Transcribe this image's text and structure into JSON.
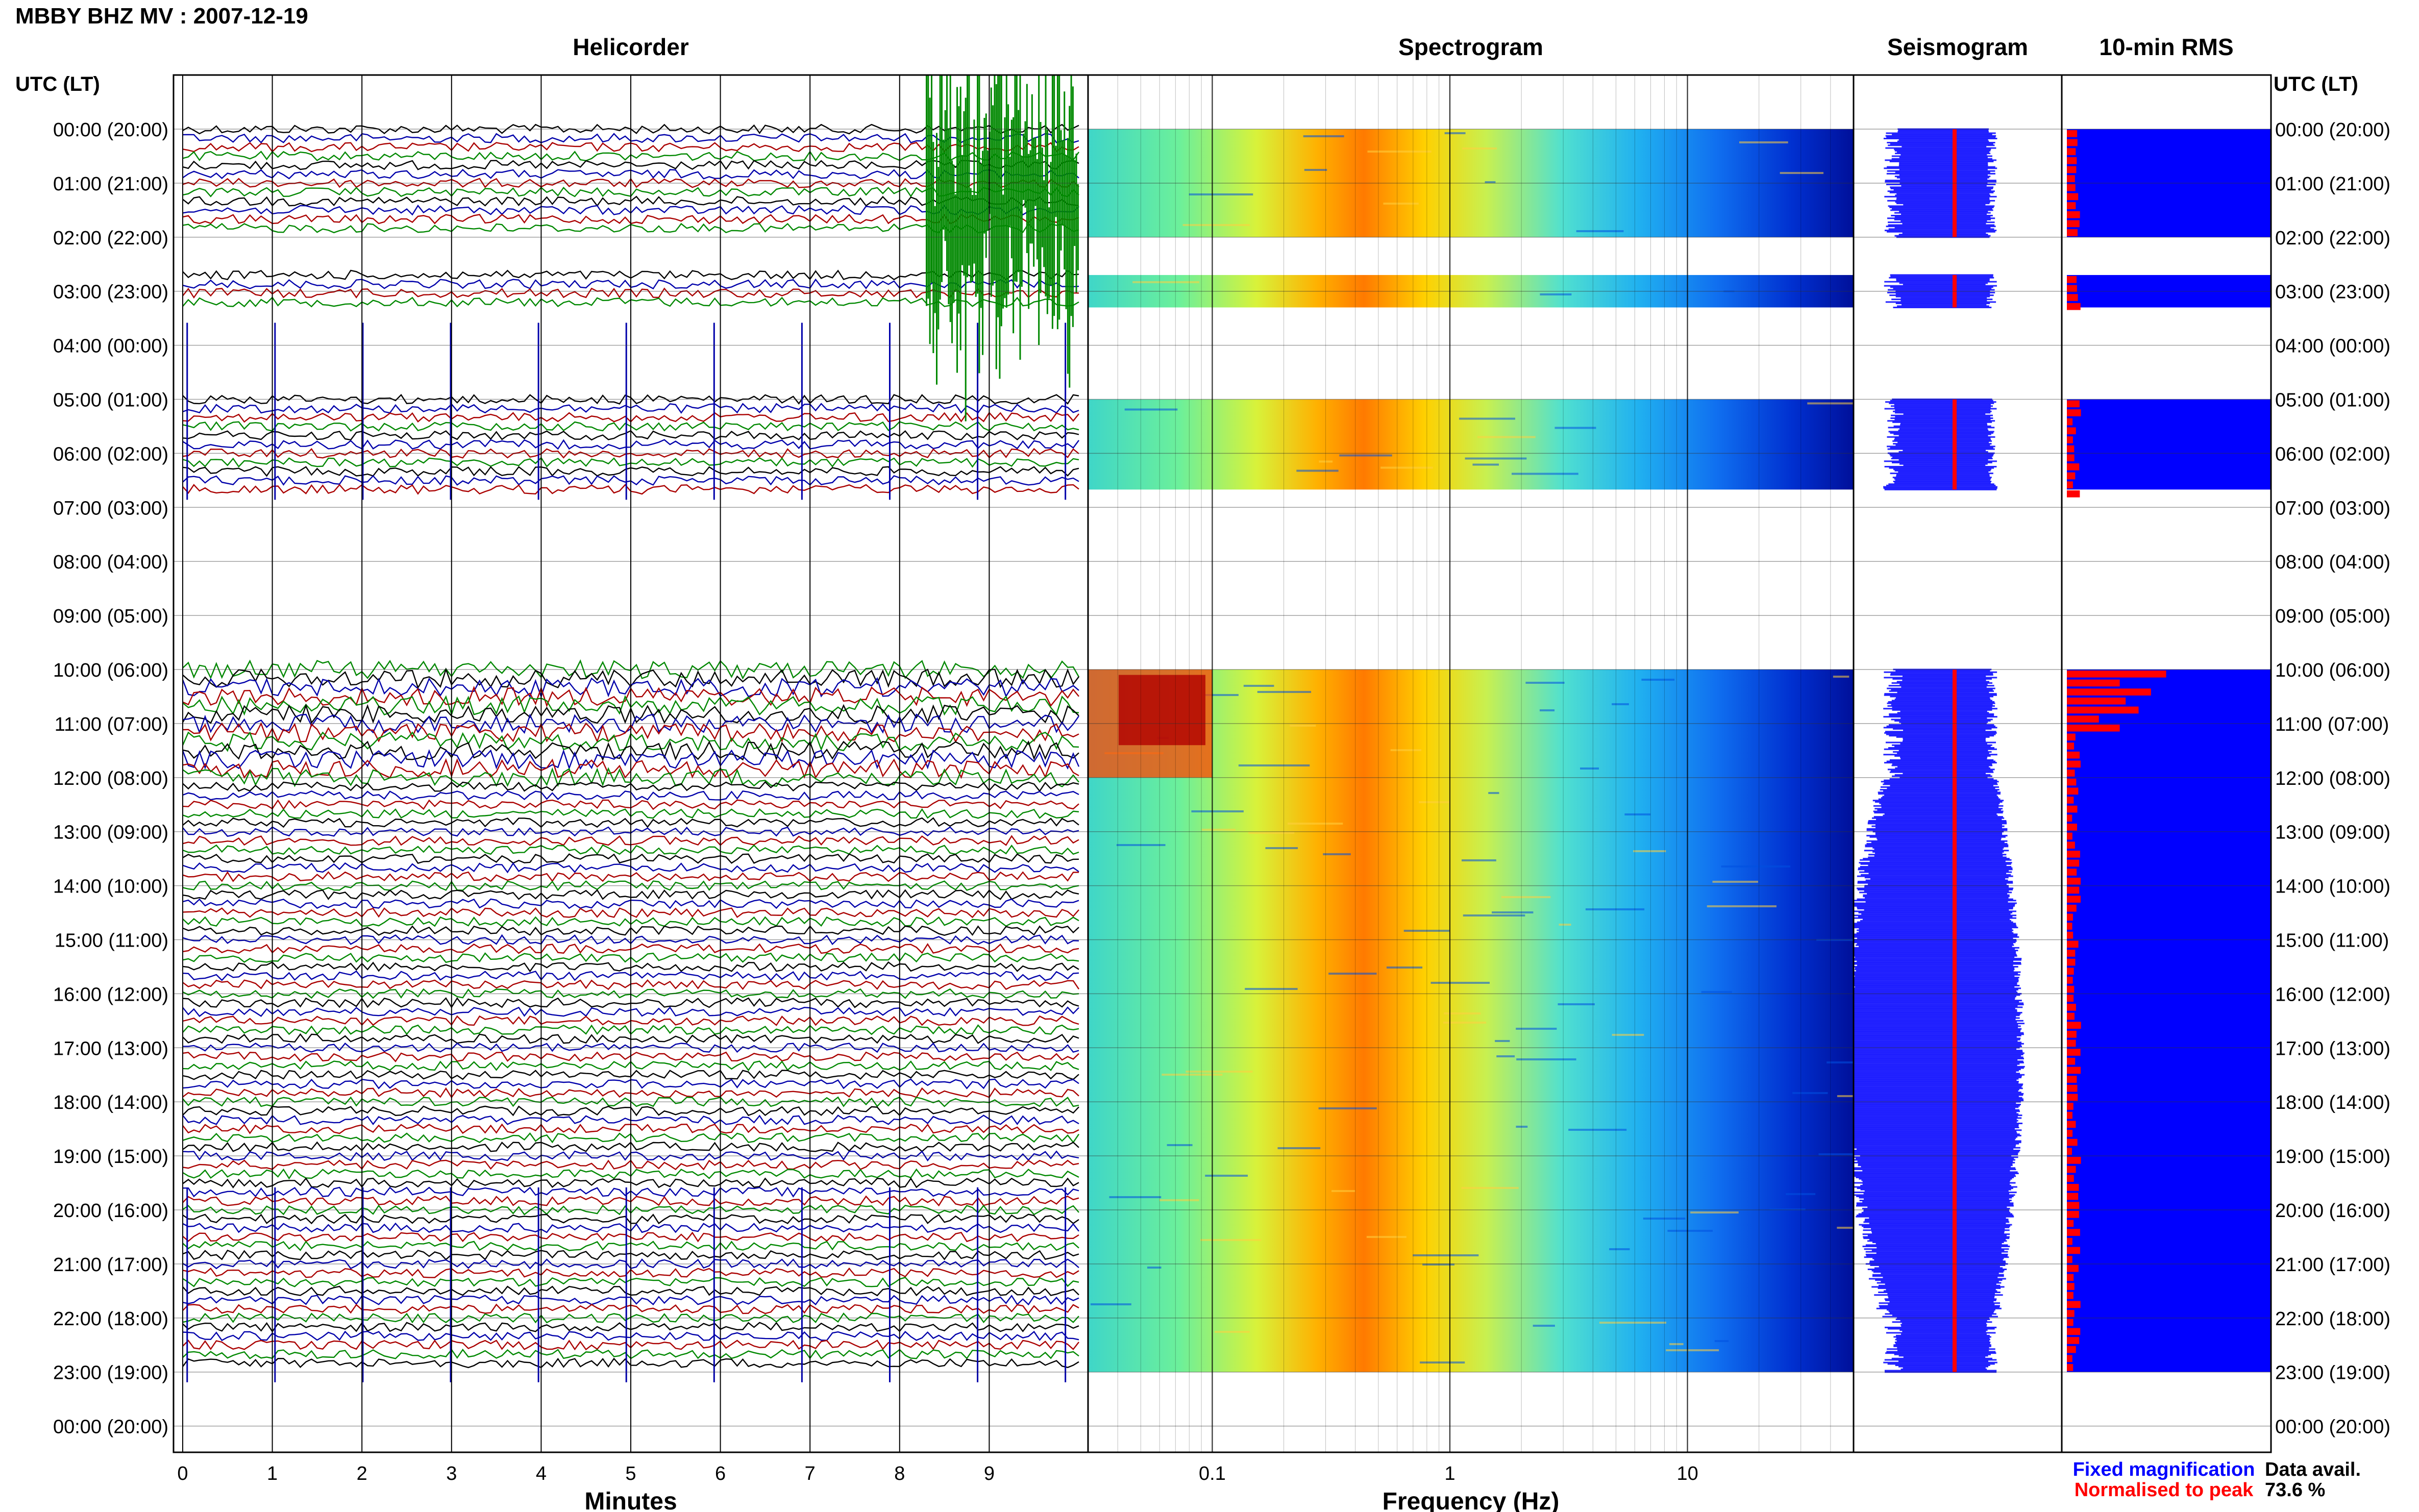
{
  "title": "MBBY BHZ MV : 2007-12-19",
  "data_availability": {
    "label": "Data avail.",
    "value": "73.6 %"
  },
  "legend": {
    "fixed": "Fixed magnification",
    "normalised": "Normalised to peak",
    "colors": {
      "fixed": "#0000ff",
      "normalised": "#ff0000"
    }
  },
  "time_axis": {
    "heading": "UTC (LT)",
    "labels": [
      "00:00 (20:00)",
      "01:00 (21:00)",
      "02:00 (22:00)",
      "03:00 (23:00)",
      "04:00 (00:00)",
      "05:00 (01:00)",
      "06:00 (02:00)",
      "07:00 (03:00)",
      "08:00 (04:00)",
      "09:00 (05:00)",
      "10:00 (06:00)",
      "11:00 (07:00)",
      "12:00 (08:00)",
      "13:00 (09:00)",
      "14:00 (10:00)",
      "15:00 (11:00)",
      "16:00 (12:00)",
      "17:00 (13:00)",
      "18:00 (14:00)",
      "19:00 (15:00)",
      "20:00 (16:00)",
      "21:00 (17:00)",
      "22:00 (18:00)",
      "23:00 (19:00)",
      "00:00 (20:00)"
    ]
  },
  "data_segments_utc_hours": [
    [
      0,
      2
    ],
    [
      2.7,
      3.3
    ],
    [
      5,
      6.67
    ],
    [
      10,
      23
    ]
  ],
  "chart_data": [
    {
      "type": "line",
      "title": "Helicorder",
      "xlabel": "Minutes",
      "xlim": [
        0,
        10
      ],
      "x_ticks": [
        0,
        1,
        2,
        3,
        4,
        5,
        6,
        7,
        8,
        9
      ],
      "trace_colors": [
        "#000000",
        "#0000aa",
        "#aa0000",
        "#008800"
      ],
      "grid": true
    },
    {
      "type": "heatmap",
      "title": "Spectrogram",
      "xlabel": "Frequency (Hz)",
      "xscale": "log",
      "xlim": [
        0.03,
        50
      ],
      "x_ticks": [
        0.1,
        1,
        10
      ],
      "x_tick_labels": [
        "0.1",
        "1",
        "10"
      ],
      "colormap": [
        "#00008b",
        "#0000ff",
        "#00bfff",
        "#40e0d0",
        "#7fff7f",
        "#ffff00",
        "#ffa500",
        "#ff4500",
        "#b00000"
      ],
      "grid": true
    },
    {
      "type": "line",
      "title": "Seismogram",
      "series": [
        {
          "name": "Fixed magnification",
          "color": "#0000ff"
        },
        {
          "name": "Normalised to peak",
          "color": "#ff0000"
        }
      ]
    },
    {
      "type": "bar",
      "title": "10-min RMS",
      "series": [
        {
          "name": "Fixed magnification",
          "color": "#0000ff"
        },
        {
          "name": "Normalised to peak",
          "color": "#ff0000"
        }
      ]
    }
  ]
}
